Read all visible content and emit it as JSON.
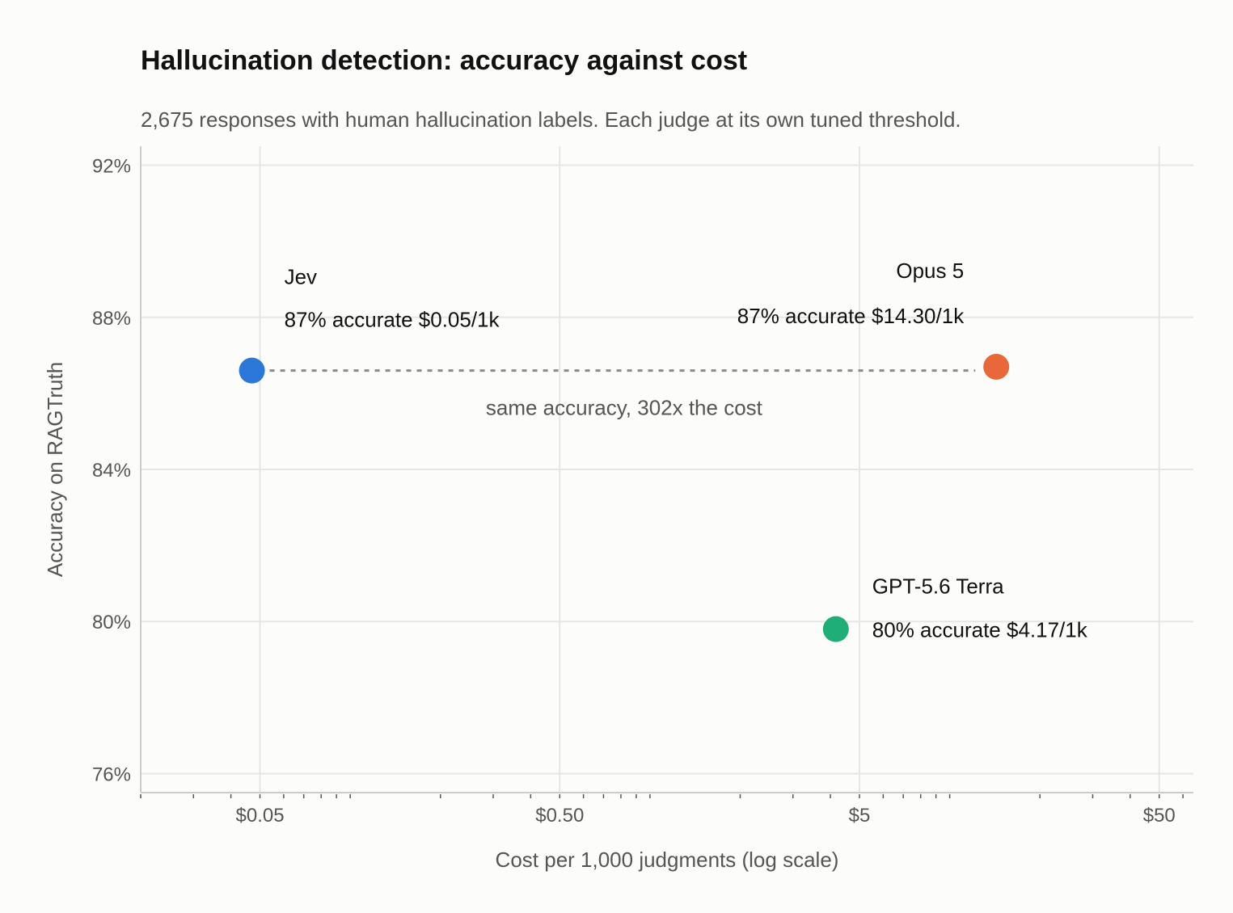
{
  "chart_data": {
    "type": "scatter",
    "title": "Hallucination detection: accuracy against cost",
    "subtitle": "2,675 responses with human hallucination labels. Each judge at its own tuned threshold.",
    "xlabel": "Cost per 1,000 judgments (log scale)",
    "ylabel": "Accuracy on RAGTruth",
    "x_scale": "log",
    "xlim": [
      0.02,
      65
    ],
    "ylim": [
      75.5,
      92.5
    ],
    "x_ticks": [
      {
        "value": 0.05,
        "label": "$0.05"
      },
      {
        "value": 0.5,
        "label": "$0.50"
      },
      {
        "value": 5,
        "label": "$5"
      },
      {
        "value": 50,
        "label": "$50"
      }
    ],
    "y_ticks": [
      {
        "value": 76,
        "label": "76%"
      },
      {
        "value": 80,
        "label": "80%"
      },
      {
        "value": 84,
        "label": "84%"
      },
      {
        "value": 88,
        "label": "88%"
      },
      {
        "value": 92,
        "label": "92%"
      }
    ],
    "grid": true,
    "points": [
      {
        "name": "Jev",
        "x": 0.047,
        "y": 86.6,
        "color": "#2b78d9",
        "label": "87% accurate  $0.05/1k"
      },
      {
        "name": "Opus 5",
        "x": 14.3,
        "y": 86.7,
        "color": "#e8683a",
        "label": "87% accurate  $14.30/1k"
      },
      {
        "name": "GPT-5.6 Terra",
        "x": 4.17,
        "y": 79.8,
        "color": "#1fae78",
        "label": "80% accurate  $4.17/1k"
      }
    ],
    "annotation": {
      "text": "same accuracy, 302x the cost"
    }
  }
}
